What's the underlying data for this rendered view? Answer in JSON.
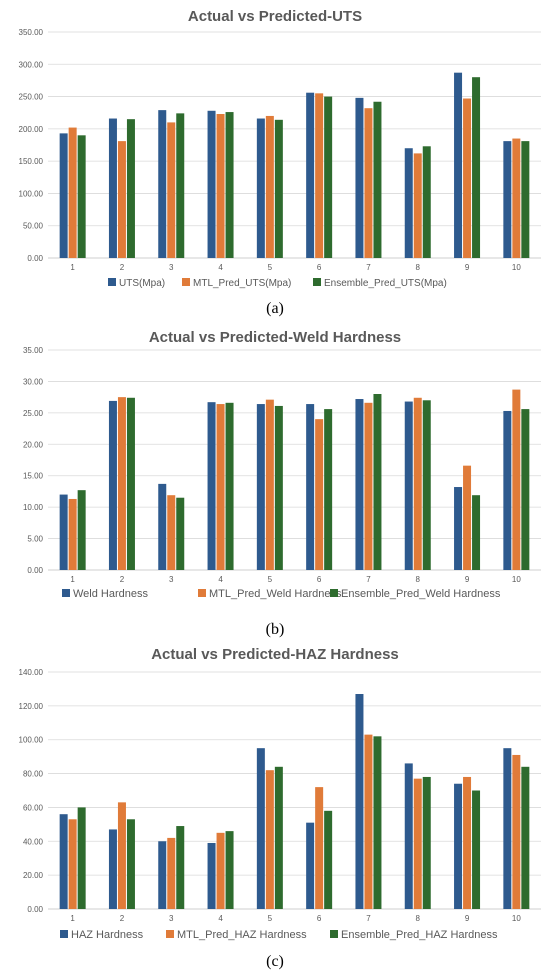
{
  "colors": {
    "series": [
      "#2E5A8E",
      "#E07B39",
      "#2E6B2E"
    ],
    "grid": "#D9D9D9",
    "axis": "#BFBFBF"
  },
  "chart_data": [
    {
      "type": "bar",
      "title": "Actual vs Predicted-UTS",
      "caption": "(a)",
      "categories": [
        "1",
        "2",
        "3",
        "4",
        "5",
        "6",
        "7",
        "8",
        "9",
        "10"
      ],
      "ylim": [
        0,
        350
      ],
      "yticks": [
        "0.00",
        "50.00",
        "100.00",
        "150.00",
        "200.00",
        "250.00",
        "300.00",
        "350.00"
      ],
      "grid": true,
      "legend": "bottom",
      "series": [
        {
          "name": "UTS(Mpa)",
          "values": [
            193,
            216,
            229,
            228,
            216,
            256,
            248,
            170,
            287,
            181
          ]
        },
        {
          "name": "MTL_Pred_UTS(Mpa)",
          "values": [
            202,
            181,
            210,
            223,
            220,
            255,
            232,
            162,
            247,
            185
          ]
        },
        {
          "name": "Ensemble_Pred_UTS(Mpa)",
          "values": [
            190,
            215,
            224,
            226,
            214,
            250,
            242,
            173,
            280,
            181
          ]
        }
      ]
    },
    {
      "type": "bar",
      "title": "Actual vs Predicted-Weld Hardness",
      "caption": "(b)",
      "categories": [
        "1",
        "2",
        "3",
        "4",
        "5",
        "6",
        "7",
        "8",
        "9",
        "10"
      ],
      "ylim": [
        0,
        35
      ],
      "yticks": [
        "0.00",
        "5.00",
        "10.00",
        "15.00",
        "20.00",
        "25.00",
        "30.00",
        "35.00"
      ],
      "grid": true,
      "legend": "bottom",
      "series": [
        {
          "name": "Weld Hardness",
          "values": [
            12.0,
            26.9,
            13.7,
            26.7,
            26.4,
            26.4,
            27.2,
            26.8,
            13.2,
            25.3
          ]
        },
        {
          "name": "MTL_Pred_Weld Hardness",
          "values": [
            11.3,
            27.5,
            11.9,
            26.4,
            27.1,
            24.0,
            26.6,
            27.4,
            16.6,
            28.7
          ]
        },
        {
          "name": "Ensemble_Pred_Weld Hardness",
          "values": [
            12.7,
            27.4,
            11.5,
            26.6,
            26.1,
            25.6,
            28.0,
            27.0,
            11.9,
            25.6
          ]
        }
      ]
    },
    {
      "type": "bar",
      "title": "Actual vs Predicted-HAZ Hardness",
      "caption": "(c)",
      "categories": [
        "1",
        "2",
        "3",
        "4",
        "5",
        "6",
        "7",
        "8",
        "9",
        "10"
      ],
      "ylim": [
        0,
        140
      ],
      "yticks": [
        "0.00",
        "20.00",
        "40.00",
        "60.00",
        "80.00",
        "100.00",
        "120.00",
        "140.00"
      ],
      "grid": true,
      "legend": "bottom",
      "series": [
        {
          "name": "HAZ Hardness",
          "values": [
            56,
            47,
            40,
            39,
            95,
            51,
            127,
            86,
            74,
            95
          ]
        },
        {
          "name": "MTL_Pred_HAZ Hardness",
          "values": [
            53,
            63,
            42,
            45,
            82,
            72,
            103,
            77,
            78,
            91
          ]
        },
        {
          "name": "Ensemble_Pred_HAZ Hardness",
          "values": [
            60,
            53,
            49,
            46,
            84,
            58,
            102,
            78,
            70,
            84
          ]
        }
      ]
    }
  ]
}
